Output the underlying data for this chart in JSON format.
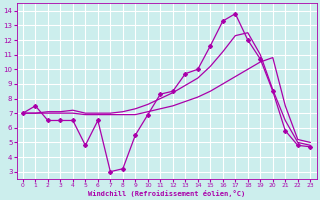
{
  "xlabel": "Windchill (Refroidissement éolien,°C)",
  "background_color": "#cceeed",
  "grid_color": "#ffffff",
  "line_color": "#aa00aa",
  "xlim": [
    -0.5,
    23.5
  ],
  "ylim": [
    2.5,
    14.5
  ],
  "xticks": [
    0,
    1,
    2,
    3,
    4,
    5,
    6,
    7,
    8,
    9,
    10,
    11,
    12,
    13,
    14,
    15,
    16,
    17,
    18,
    19,
    20,
    21,
    22,
    23
  ],
  "yticks": [
    3,
    4,
    5,
    6,
    7,
    8,
    9,
    10,
    11,
    12,
    13,
    14
  ],
  "line1_x": [
    0,
    1,
    2,
    3,
    4,
    5,
    6,
    7,
    8,
    9,
    10,
    11,
    12,
    13,
    14,
    15,
    16,
    17,
    18,
    19,
    20,
    21,
    22,
    23
  ],
  "line1_y": [
    7.0,
    7.5,
    6.5,
    6.5,
    6.5,
    4.8,
    6.5,
    3.0,
    3.2,
    5.5,
    6.9,
    8.3,
    8.5,
    9.7,
    10.0,
    11.6,
    13.3,
    13.8,
    12.0,
    10.7,
    8.5,
    5.8,
    4.8,
    4.7
  ],
  "line2_x": [
    0,
    1,
    2,
    3,
    4,
    5,
    6,
    7,
    8,
    9,
    10,
    11,
    12,
    13,
    14,
    15,
    16,
    17,
    18,
    19,
    20,
    21,
    22,
    23
  ],
  "line2_y": [
    7.0,
    7.0,
    7.0,
    7.0,
    7.0,
    6.9,
    6.9,
    6.9,
    6.9,
    6.9,
    7.1,
    7.3,
    7.5,
    7.8,
    8.1,
    8.5,
    9.0,
    9.5,
    10.0,
    10.5,
    10.8,
    7.5,
    5.2,
    5.0
  ],
  "line3_x": [
    0,
    1,
    2,
    3,
    4,
    5,
    6,
    7,
    8,
    9,
    10,
    11,
    12,
    13,
    14,
    15,
    16,
    17,
    18,
    19,
    20,
    21,
    22,
    23
  ],
  "line3_y": [
    7.0,
    7.0,
    7.1,
    7.1,
    7.2,
    7.0,
    7.0,
    7.0,
    7.1,
    7.3,
    7.6,
    8.0,
    8.4,
    8.9,
    9.4,
    10.2,
    11.2,
    12.3,
    12.5,
    11.0,
    8.6,
    6.5,
    5.0,
    4.8
  ]
}
